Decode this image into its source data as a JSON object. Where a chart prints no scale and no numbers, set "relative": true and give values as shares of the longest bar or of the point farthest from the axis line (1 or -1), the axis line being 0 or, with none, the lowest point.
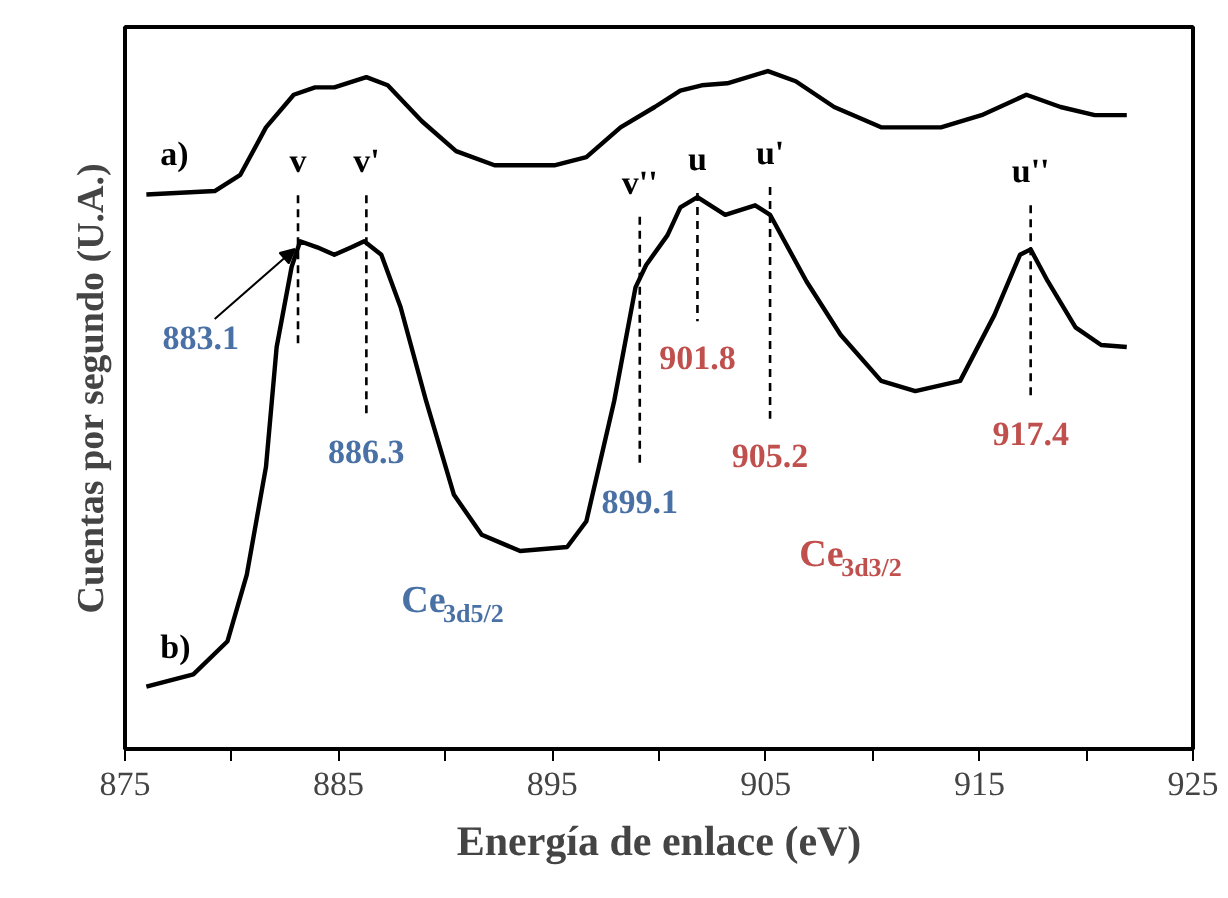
{
  "chart_data": {
    "type": "line",
    "relative": true,
    "xlabel": "Energía de enlace (eV)",
    "ylabel": "Cuentas por segundo (U.A.)",
    "xlim": [
      875,
      925
    ],
    "xticks": [
      875,
      {
        "value": 880,
        "label": null
      },
      885,
      {
        "value": 890,
        "label": null
      },
      895,
      {
        "value": 900,
        "label": null
      },
      905,
      {
        "value": 910,
        "label": null
      },
      915,
      {
        "value": 920,
        "label": null
      },
      925
    ],
    "tick_labels": "x",
    "grid": false,
    "marker": "none",
    "line_style": "solid",
    "series": [
      {
        "name": "a)",
        "color": "#000000",
        "x": [
          876.0,
          879.2,
          880.4,
          881.6,
          882.9,
          883.9,
          884.8,
          886.3,
          887.3,
          888.9,
          890.5,
          892.3,
          895.1,
          896.6,
          898.2,
          899.8,
          901.0,
          902.0,
          903.2,
          905.1,
          906.4,
          908.2,
          910.4,
          913.2,
          915.1,
          917.2,
          918.8,
          920.4,
          921.9
        ],
        "values": [
          0.818,
          0.823,
          0.847,
          0.917,
          0.965,
          0.976,
          0.976,
          0.991,
          0.979,
          0.926,
          0.882,
          0.861,
          0.861,
          0.873,
          0.917,
          0.947,
          0.971,
          0.979,
          0.982,
          1.0,
          0.985,
          0.947,
          0.917,
          0.917,
          0.935,
          0.965,
          0.947,
          0.935,
          0.935
        ]
      },
      {
        "name": "b)",
        "color": "#000000",
        "x": [
          876.0,
          878.2,
          879.8,
          880.7,
          881.6,
          882.1,
          882.8,
          883.2,
          884.0,
          884.8,
          885.6,
          886.2,
          887.0,
          887.9,
          889.1,
          890.4,
          891.7,
          893.5,
          895.7,
          896.6,
          897.9,
          898.9,
          899.4,
          900.4,
          901.0,
          901.8,
          903.1,
          904.5,
          905.2,
          906.9,
          908.5,
          910.4,
          912.0,
          914.1,
          915.7,
          916.9,
          917.4,
          918.2,
          919.5,
          920.7,
          921.9
        ],
        "values": [
          0.092,
          0.11,
          0.159,
          0.257,
          0.416,
          0.593,
          0.711,
          0.749,
          0.74,
          0.729,
          0.74,
          0.749,
          0.729,
          0.652,
          0.513,
          0.375,
          0.316,
          0.292,
          0.298,
          0.336,
          0.513,
          0.681,
          0.714,
          0.758,
          0.799,
          0.814,
          0.788,
          0.802,
          0.788,
          0.69,
          0.611,
          0.543,
          0.528,
          0.543,
          0.64,
          0.729,
          0.737,
          0.69,
          0.622,
          0.596,
          0.593
        ]
      },
      {
        "name": "v",
        "color": "#000000",
        "line_style": "dashed",
        "x": [
          883.1,
          883.1
        ],
        "values": [
          0.817,
          0.596
        ]
      },
      {
        "name": "v'",
        "color": "#000000",
        "line_style": "dashed",
        "x": [
          886.3,
          886.3
        ],
        "values": [
          0.817,
          0.493
        ]
      },
      {
        "name": "v''",
        "color": "#000000",
        "line_style": "dashed",
        "x": [
          899.1,
          899.1
        ],
        "values": [
          0.785,
          0.419
        ]
      },
      {
        "name": "u",
        "color": "#000000",
        "line_style": "dashed",
        "x": [
          901.8,
          901.8
        ],
        "values": [
          0.82,
          0.631
        ]
      },
      {
        "name": "u'",
        "color": "#000000",
        "line_style": "dashed",
        "x": [
          905.2,
          905.2
        ],
        "values": [
          0.829,
          0.487
        ]
      },
      {
        "name": "u''",
        "color": "#000000",
        "line_style": "dashed",
        "x": [
          917.4,
          917.4
        ],
        "values": [
          0.802,
          0.519
        ]
      }
    ],
    "annotations": [
      {
        "text": "883.1",
        "x": 883.1,
        "y": 0.596
      },
      {
        "text": "886.3",
        "x": 886.3,
        "y": 0.493
      },
      {
        "text": "899.1",
        "x": 899.1,
        "y": 0.419
      },
      {
        "text": "901.8",
        "x": 901.8,
        "y": 0.631
      },
      {
        "text": "905.2",
        "x": 905.2,
        "y": 0.487
      },
      {
        "text": "917.4",
        "x": 917.4,
        "y": 0.519
      },
      "Ce$_{3d5/2}$",
      "Ce$_{3d3/2}$"
    ]
  }
}
